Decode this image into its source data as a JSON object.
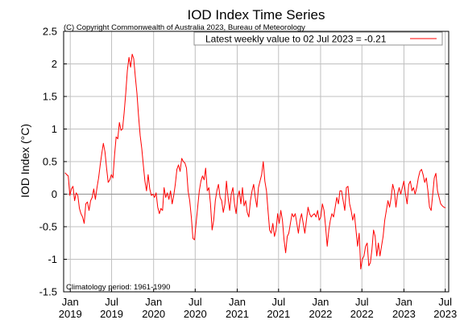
{
  "chart_data": {
    "type": "line",
    "title": "IOD Index Time Series",
    "subtitle": "(C) Copyright Commonwealth of Australia 2023, Bureau of Meteorology",
    "ylabel": "IOD Index (°C)",
    "xlabel": "",
    "ylim": [
      -1.5,
      2.5
    ],
    "yticks": [
      2.5,
      2,
      1.5,
      1,
      0.5,
      0,
      -0.5,
      -1,
      -1.5
    ],
    "xlim": [
      "2018-12-03",
      "2023-07-16"
    ],
    "xticks": [
      {
        "date": "2019-01-01",
        "month": "Jan",
        "year": "2019"
      },
      {
        "date": "2019-07-01",
        "month": "Jul",
        "year": "2019"
      },
      {
        "date": "2020-01-01",
        "month": "Jan",
        "year": "2020"
      },
      {
        "date": "2020-07-01",
        "month": "Jul",
        "year": "2020"
      },
      {
        "date": "2021-01-01",
        "month": "Jan",
        "year": "2021"
      },
      {
        "date": "2021-07-01",
        "month": "Jul",
        "year": "2021"
      },
      {
        "date": "2022-01-01",
        "month": "Jan",
        "year": "2022"
      },
      {
        "date": "2022-07-01",
        "month": "Jul",
        "year": "2022"
      },
      {
        "date": "2023-01-01",
        "month": "Jan",
        "year": "2023"
      },
      {
        "date": "2023-07-01",
        "month": "Jul",
        "year": "2023"
      }
    ],
    "grid": true,
    "legend_position": "top-right",
    "zero_line": true,
    "series": [
      {
        "name": "Latest weekly value to 02 Jul 2023 = -0.21",
        "color": "#ff0000",
        "points": [
          [
            "2018-12-09",
            0.33
          ],
          [
            "2018-12-16",
            0.3
          ],
          [
            "2018-12-23",
            0.28
          ],
          [
            "2018-12-30",
            -0.02
          ],
          [
            "2019-01-06",
            0.08
          ],
          [
            "2019-01-13",
            0.12
          ],
          [
            "2019-01-20",
            -0.1
          ],
          [
            "2019-01-27",
            0.02
          ],
          [
            "2019-02-03",
            -0.02
          ],
          [
            "2019-02-10",
            -0.22
          ],
          [
            "2019-02-17",
            -0.3
          ],
          [
            "2019-02-24",
            -0.35
          ],
          [
            "2019-03-03",
            -0.45
          ],
          [
            "2019-03-10",
            -0.15
          ],
          [
            "2019-03-17",
            -0.12
          ],
          [
            "2019-03-24",
            -0.25
          ],
          [
            "2019-03-31",
            -0.1
          ],
          [
            "2019-04-07",
            -0.05
          ],
          [
            "2019-04-14",
            0.08
          ],
          [
            "2019-04-21",
            -0.08
          ],
          [
            "2019-04-28",
            0.1
          ],
          [
            "2019-05-05",
            0.25
          ],
          [
            "2019-05-12",
            0.45
          ],
          [
            "2019-05-19",
            0.62
          ],
          [
            "2019-05-26",
            0.78
          ],
          [
            "2019-06-02",
            0.65
          ],
          [
            "2019-06-09",
            0.4
          ],
          [
            "2019-06-16",
            0.18
          ],
          [
            "2019-06-23",
            0.22
          ],
          [
            "2019-06-30",
            0.3
          ],
          [
            "2019-07-07",
            0.25
          ],
          [
            "2019-07-14",
            0.6
          ],
          [
            "2019-07-21",
            0.88
          ],
          [
            "2019-07-28",
            0.85
          ],
          [
            "2019-08-04",
            1.1
          ],
          [
            "2019-08-11",
            0.98
          ],
          [
            "2019-08-18",
            1.0
          ],
          [
            "2019-08-25",
            1.25
          ],
          [
            "2019-09-01",
            1.55
          ],
          [
            "2019-09-08",
            1.9
          ],
          [
            "2019-09-15",
            2.1
          ],
          [
            "2019-09-22",
            1.95
          ],
          [
            "2019-09-29",
            2.15
          ],
          [
            "2019-10-06",
            2.08
          ],
          [
            "2019-10-13",
            1.8
          ],
          [
            "2019-10-20",
            1.55
          ],
          [
            "2019-10-27",
            1.2
          ],
          [
            "2019-11-03",
            0.9
          ],
          [
            "2019-11-10",
            0.7
          ],
          [
            "2019-11-17",
            0.45
          ],
          [
            "2019-11-24",
            0.2
          ],
          [
            "2019-12-01",
            0.05
          ],
          [
            "2019-12-08",
            0.3
          ],
          [
            "2019-12-15",
            0.08
          ],
          [
            "2019-12-22",
            -0.02
          ],
          [
            "2019-12-29",
            0.0
          ],
          [
            "2020-01-05",
            -0.05
          ],
          [
            "2020-01-12",
            0.02
          ],
          [
            "2020-01-19",
            -0.2
          ],
          [
            "2020-01-26",
            -0.3
          ],
          [
            "2020-02-02",
            -0.22
          ],
          [
            "2020-02-09",
            -0.25
          ],
          [
            "2020-02-16",
            0.1
          ],
          [
            "2020-02-23",
            -0.05
          ],
          [
            "2020-03-01",
            0.02
          ],
          [
            "2020-03-08",
            -0.08
          ],
          [
            "2020-03-15",
            0.05
          ],
          [
            "2020-03-22",
            -0.15
          ],
          [
            "2020-03-29",
            -0.02
          ],
          [
            "2020-04-05",
            0.15
          ],
          [
            "2020-04-12",
            0.38
          ],
          [
            "2020-04-19",
            0.45
          ],
          [
            "2020-04-26",
            0.35
          ],
          [
            "2020-05-03",
            0.55
          ],
          [
            "2020-05-10",
            0.5
          ],
          [
            "2020-05-17",
            0.48
          ],
          [
            "2020-05-24",
            0.4
          ],
          [
            "2020-05-31",
            0.05
          ],
          [
            "2020-06-07",
            -0.1
          ],
          [
            "2020-06-14",
            -0.35
          ],
          [
            "2020-06-21",
            -0.68
          ],
          [
            "2020-06-28",
            -0.7
          ],
          [
            "2020-07-05",
            -0.45
          ],
          [
            "2020-07-12",
            -0.2
          ],
          [
            "2020-07-19",
            0.05
          ],
          [
            "2020-07-26",
            0.2
          ],
          [
            "2020-08-02",
            0.28
          ],
          [
            "2020-08-09",
            0.22
          ],
          [
            "2020-08-16",
            0.4
          ],
          [
            "2020-08-23",
            0.05
          ],
          [
            "2020-08-30",
            0.1
          ],
          [
            "2020-09-06",
            -0.15
          ],
          [
            "2020-09-13",
            -0.55
          ],
          [
            "2020-09-20",
            -0.4
          ],
          [
            "2020-09-27",
            -0.1
          ],
          [
            "2020-10-04",
            0.05
          ],
          [
            "2020-10-11",
            0.15
          ],
          [
            "2020-10-18",
            -0.05
          ],
          [
            "2020-10-25",
            -0.1
          ],
          [
            "2020-11-01",
            -0.28
          ],
          [
            "2020-11-08",
            -0.15
          ],
          [
            "2020-11-15",
            0.2
          ],
          [
            "2020-11-22",
            -0.05
          ],
          [
            "2020-11-29",
            -0.25
          ],
          [
            "2020-12-06",
            0.0
          ],
          [
            "2020-12-13",
            0.1
          ],
          [
            "2020-12-20",
            -0.15
          ],
          [
            "2020-12-27",
            -0.3
          ],
          [
            "2021-01-03",
            -0.05
          ],
          [
            "2021-01-10",
            0.05
          ],
          [
            "2021-01-17",
            -0.15
          ],
          [
            "2021-01-24",
            0.1
          ],
          [
            "2021-01-31",
            -0.18
          ],
          [
            "2021-02-07",
            -0.1
          ],
          [
            "2021-02-14",
            -0.28
          ],
          [
            "2021-02-21",
            -0.35
          ],
          [
            "2021-02-28",
            -0.1
          ],
          [
            "2021-03-07",
            0.05
          ],
          [
            "2021-03-14",
            0.15
          ],
          [
            "2021-03-21",
            -0.05
          ],
          [
            "2021-03-28",
            -0.2
          ],
          [
            "2021-04-04",
            0.1
          ],
          [
            "2021-04-11",
            0.2
          ],
          [
            "2021-04-18",
            0.3
          ],
          [
            "2021-04-25",
            0.5
          ],
          [
            "2021-05-02",
            0.2
          ],
          [
            "2021-05-09",
            0.05
          ],
          [
            "2021-05-16",
            -0.25
          ],
          [
            "2021-05-23",
            -0.55
          ],
          [
            "2021-05-30",
            -0.6
          ],
          [
            "2021-06-06",
            -0.45
          ],
          [
            "2021-06-13",
            -0.65
          ],
          [
            "2021-06-20",
            -0.55
          ],
          [
            "2021-06-27",
            -0.3
          ],
          [
            "2021-07-04",
            -0.45
          ],
          [
            "2021-07-11",
            -0.25
          ],
          [
            "2021-07-18",
            -0.4
          ],
          [
            "2021-07-25",
            -0.7
          ],
          [
            "2021-08-01",
            -0.9
          ],
          [
            "2021-08-08",
            -0.65
          ],
          [
            "2021-08-15",
            -0.6
          ],
          [
            "2021-08-22",
            -0.45
          ],
          [
            "2021-08-29",
            -0.3
          ],
          [
            "2021-09-05",
            -0.35
          ],
          [
            "2021-09-12",
            -0.3
          ],
          [
            "2021-09-19",
            -0.45
          ],
          [
            "2021-09-26",
            -0.6
          ],
          [
            "2021-10-03",
            -0.4
          ],
          [
            "2021-10-10",
            -0.3
          ],
          [
            "2021-10-17",
            -0.45
          ],
          [
            "2021-10-24",
            -0.6
          ],
          [
            "2021-10-31",
            -0.4
          ],
          [
            "2021-11-07",
            -0.2
          ],
          [
            "2021-11-14",
            -0.3
          ],
          [
            "2021-11-21",
            -0.35
          ],
          [
            "2021-11-28",
            -0.32
          ],
          [
            "2021-12-05",
            -0.3
          ],
          [
            "2021-12-12",
            -0.35
          ],
          [
            "2021-12-19",
            -0.25
          ],
          [
            "2021-12-26",
            -0.4
          ],
          [
            "2022-01-02",
            -0.35
          ],
          [
            "2022-01-09",
            -0.15
          ],
          [
            "2022-01-16",
            -0.25
          ],
          [
            "2022-01-23",
            -0.5
          ],
          [
            "2022-01-30",
            -0.8
          ],
          [
            "2022-02-06",
            -0.55
          ],
          [
            "2022-02-13",
            -0.4
          ],
          [
            "2022-02-20",
            -0.3
          ],
          [
            "2022-02-27",
            -0.35
          ],
          [
            "2022-03-06",
            -0.2
          ],
          [
            "2022-03-13",
            -0.05
          ],
          [
            "2022-03-20",
            -0.15
          ],
          [
            "2022-03-27",
            0.05
          ],
          [
            "2022-04-03",
            0.05
          ],
          [
            "2022-04-10",
            -0.1
          ],
          [
            "2022-04-17",
            -0.25
          ],
          [
            "2022-04-24",
            0.1
          ],
          [
            "2022-05-01",
            0.12
          ],
          [
            "2022-05-08",
            -0.15
          ],
          [
            "2022-05-15",
            -0.25
          ],
          [
            "2022-05-22",
            -0.4
          ],
          [
            "2022-05-29",
            -0.3
          ],
          [
            "2022-06-05",
            -0.55
          ],
          [
            "2022-06-12",
            -0.8
          ],
          [
            "2022-06-19",
            -0.6
          ],
          [
            "2022-06-26",
            -1.15
          ],
          [
            "2022-07-03",
            -1.0
          ],
          [
            "2022-07-10",
            -0.95
          ],
          [
            "2022-07-17",
            -0.8
          ],
          [
            "2022-07-24",
            -0.75
          ],
          [
            "2022-07-31",
            -1.1
          ],
          [
            "2022-08-07",
            -1.05
          ],
          [
            "2022-08-14",
            -0.85
          ],
          [
            "2022-08-21",
            -0.55
          ],
          [
            "2022-08-28",
            -0.65
          ],
          [
            "2022-09-04",
            -0.95
          ],
          [
            "2022-09-11",
            -0.75
          ],
          [
            "2022-09-18",
            -0.95
          ],
          [
            "2022-09-25",
            -0.8
          ],
          [
            "2022-10-02",
            -0.65
          ],
          [
            "2022-10-09",
            -0.4
          ],
          [
            "2022-10-16",
            -0.25
          ],
          [
            "2022-10-23",
            -0.1
          ],
          [
            "2022-10-30",
            -0.2
          ],
          [
            "2022-11-06",
            -0.05
          ],
          [
            "2022-11-13",
            0.15
          ],
          [
            "2022-11-20",
            0.05
          ],
          [
            "2022-11-27",
            -0.2
          ],
          [
            "2022-12-04",
            0.0
          ],
          [
            "2022-12-11",
            0.1
          ],
          [
            "2022-12-18",
            0.0
          ],
          [
            "2022-12-25",
            0.1
          ],
          [
            "2023-01-01",
            0.2
          ],
          [
            "2023-01-08",
            0.0
          ],
          [
            "2023-01-15",
            -0.15
          ],
          [
            "2023-01-22",
            0.15
          ],
          [
            "2023-01-29",
            0.2
          ],
          [
            "2023-02-05",
            0.05
          ],
          [
            "2023-02-12",
            0.1
          ],
          [
            "2023-02-19",
            0.0
          ],
          [
            "2023-02-26",
            0.1
          ],
          [
            "2023-03-05",
            0.25
          ],
          [
            "2023-03-12",
            0.35
          ],
          [
            "2023-03-19",
            0.38
          ],
          [
            "2023-03-26",
            0.3
          ],
          [
            "2023-04-02",
            0.18
          ],
          [
            "2023-04-09",
            0.25
          ],
          [
            "2023-04-16",
            0.05
          ],
          [
            "2023-04-23",
            -0.2
          ],
          [
            "2023-04-30",
            -0.25
          ],
          [
            "2023-05-07",
            0.0
          ],
          [
            "2023-05-14",
            0.25
          ],
          [
            "2023-05-21",
            0.32
          ],
          [
            "2023-05-28",
            0.05
          ],
          [
            "2023-06-04",
            -0.05
          ],
          [
            "2023-06-11",
            -0.15
          ],
          [
            "2023-06-18",
            -0.18
          ],
          [
            "2023-06-25",
            -0.2
          ],
          [
            "2023-07-02",
            -0.21
          ]
        ]
      }
    ],
    "annotations": {
      "climatology": "Climatology period: 1961-1990"
    }
  },
  "colors": {
    "series": "#ff0000",
    "grid": "#c0c0c0",
    "axis": "#000000",
    "zero_line": "#909090"
  }
}
